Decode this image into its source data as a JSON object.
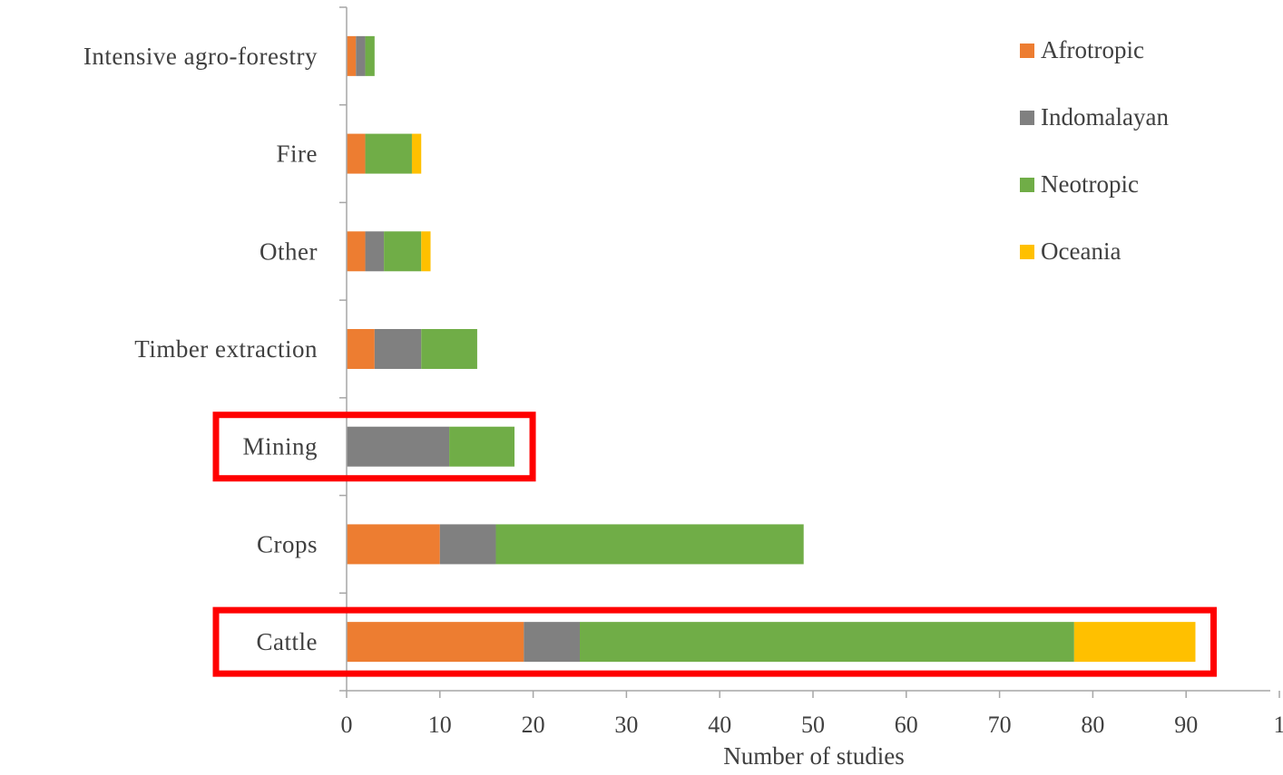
{
  "chart_data": {
    "type": "bar",
    "orientation": "horizontal",
    "stacked": true,
    "categories": [
      "Cattle",
      "Crops",
      "Mining",
      "Timber extraction",
      "Other",
      "Fire",
      "Intensive agro-forestry"
    ],
    "series": [
      {
        "name": "Afrotropic",
        "color": "#ED7D31",
        "values": [
          19,
          10,
          0,
          3,
          2,
          2,
          1
        ]
      },
      {
        "name": "Indomalayan",
        "color": "#808080",
        "values": [
          6,
          6,
          11,
          5,
          2,
          0,
          1
        ]
      },
      {
        "name": "Neotropic",
        "color": "#70AD47",
        "values": [
          53,
          33,
          7,
          6,
          4,
          5,
          1
        ]
      },
      {
        "name": "Oceania",
        "color": "#FFC000",
        "values": [
          13,
          0,
          0,
          0,
          1,
          1,
          0
        ]
      }
    ],
    "xlabel": "Number of studies",
    "ylabel": "",
    "xlim": [
      0,
      100
    ],
    "x_ticks": [
      "0",
      "10",
      "20",
      "30",
      "40",
      "50",
      "60",
      "70",
      "80",
      "90",
      "1"
    ],
    "grid": false,
    "legend_position": "top-right",
    "highlighted_categories": [
      "Mining",
      "Cattle"
    ],
    "highlight_color": "#FF0000"
  }
}
